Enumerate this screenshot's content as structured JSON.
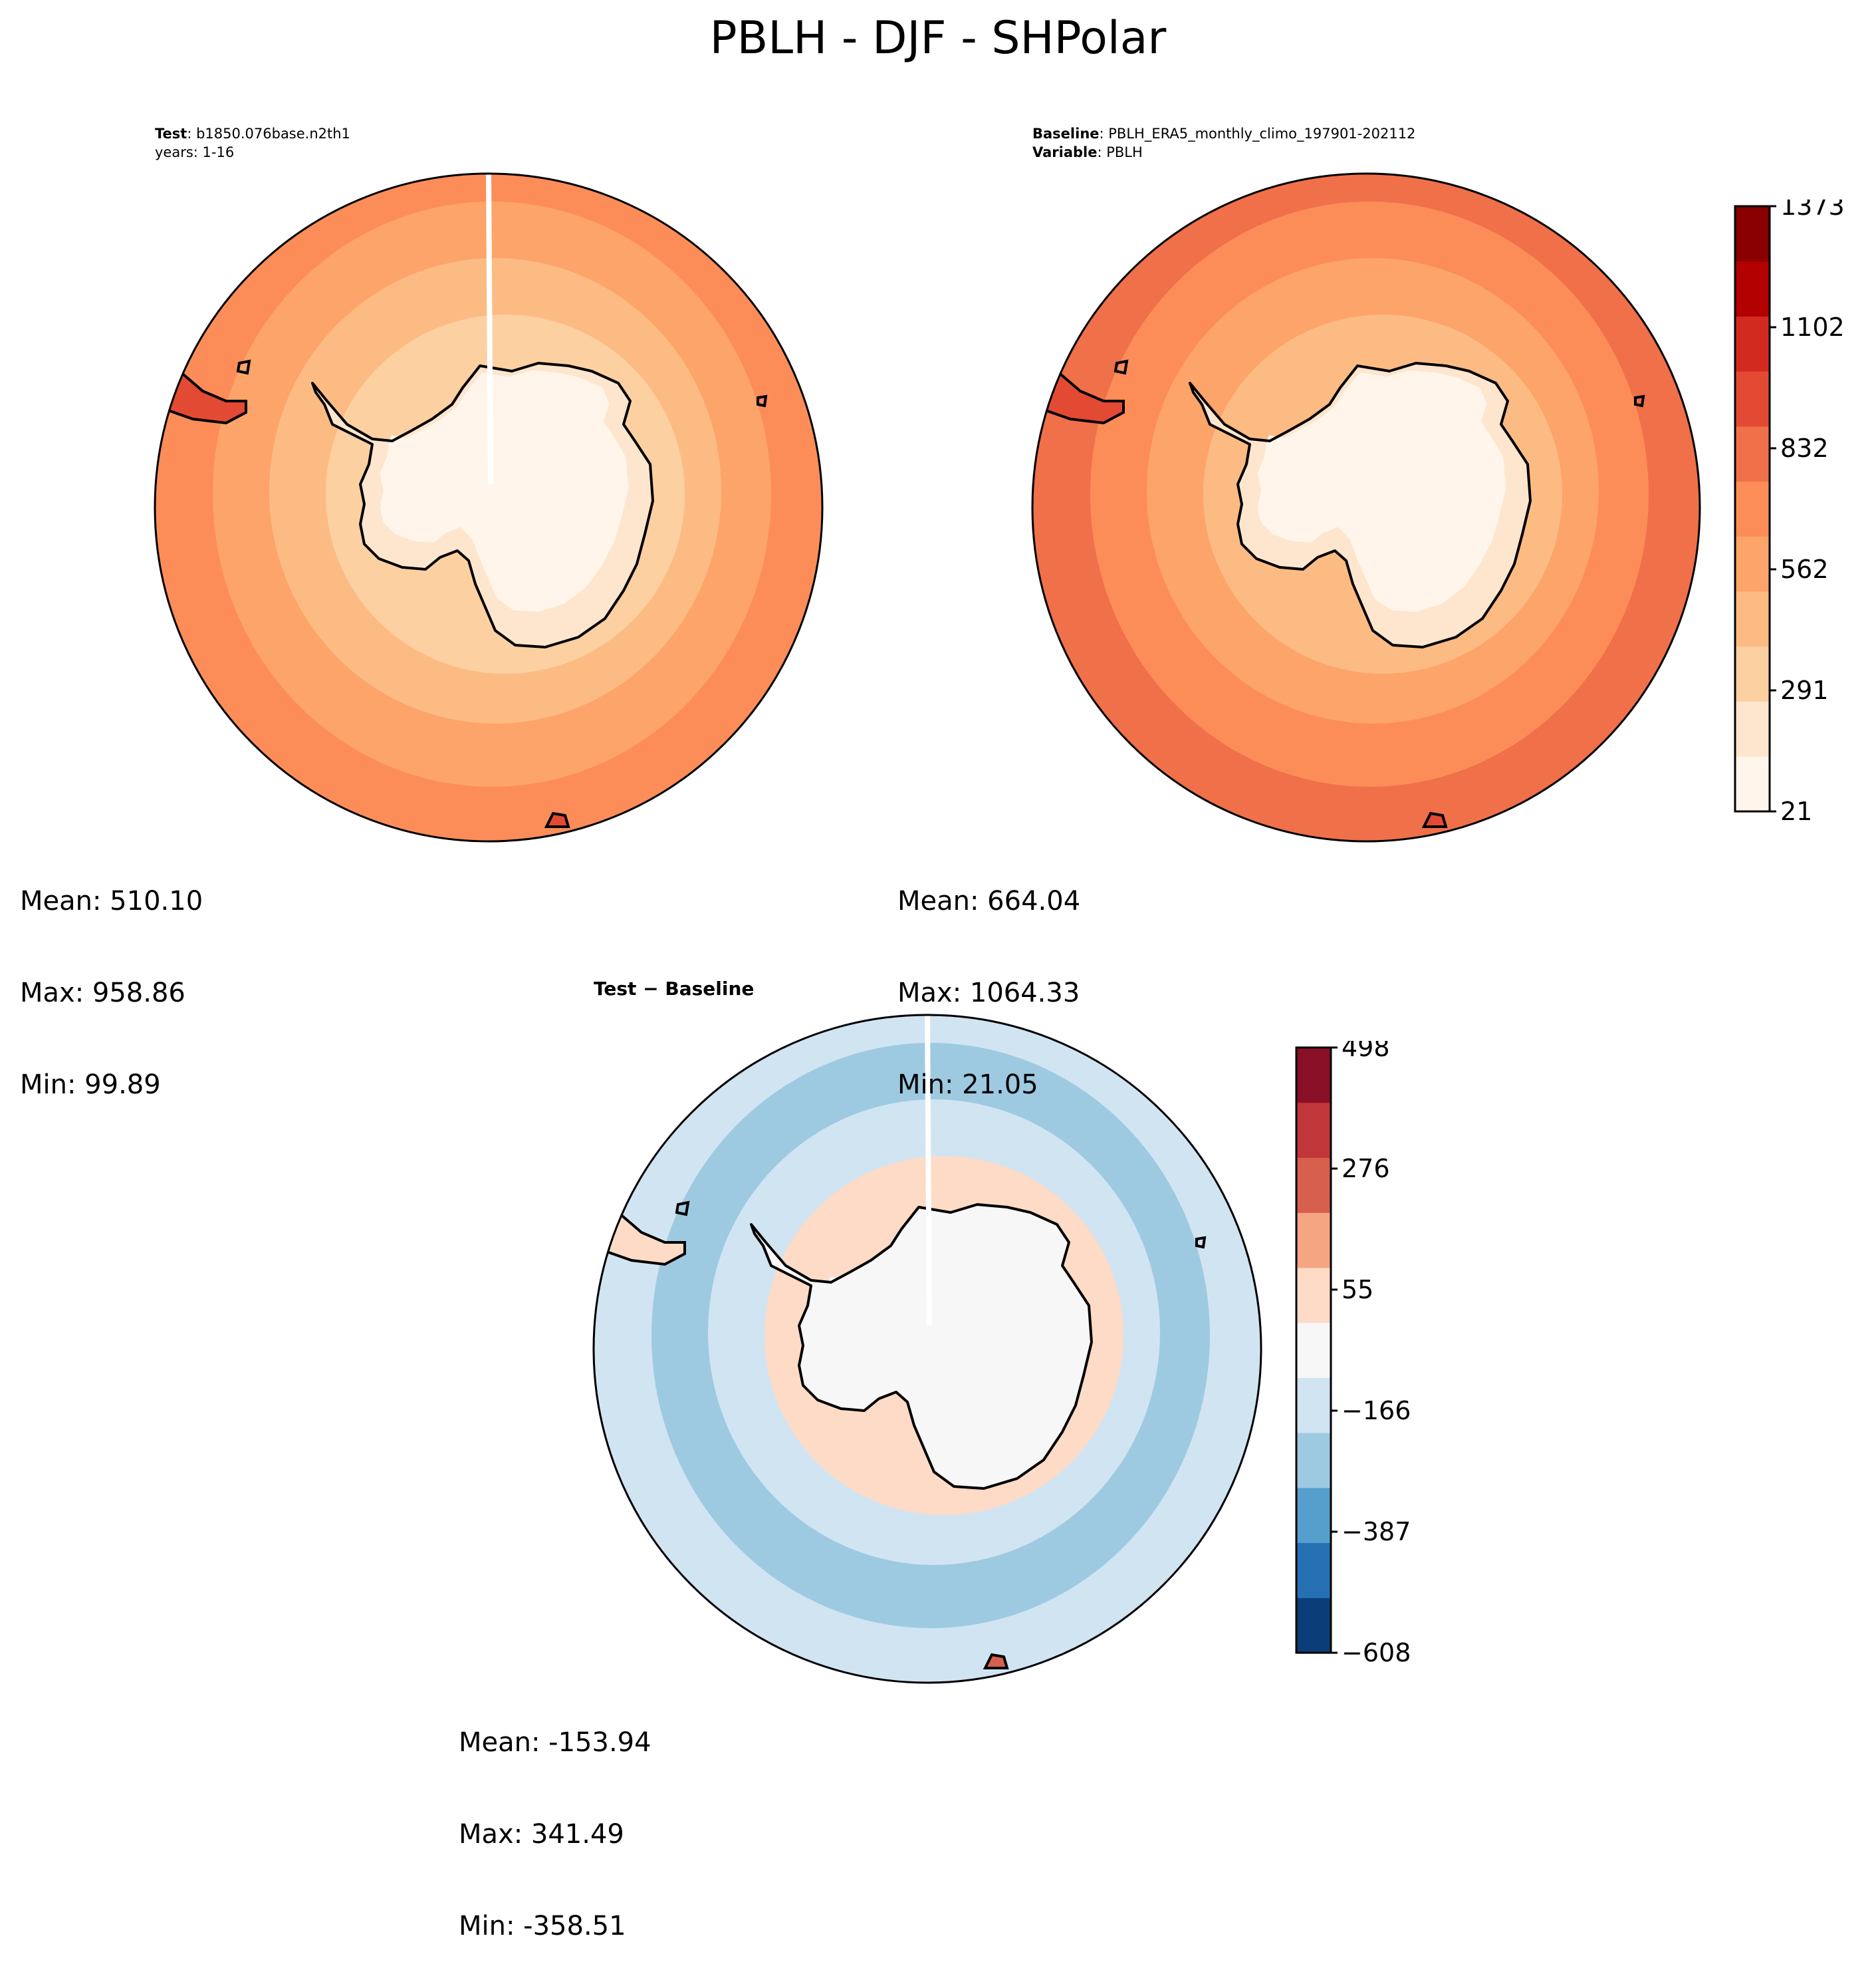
{
  "figure": {
    "title": "PBLH - DJF - SHPolar"
  },
  "panels": {
    "test": {
      "label_bold": "Test",
      "label_text": ": b1850.076base.n2th1",
      "subtitle": "years: 1-16",
      "stats": {
        "mean": "Mean: 510.10",
        "max": "Max: 958.86",
        "min": "Min: 99.89"
      }
    },
    "baseline": {
      "label_bold": "Baseline",
      "label_text": ": PBLH_ERA5_monthly_climo_197901-202112",
      "var_bold": "Variable",
      "var_text": ": PBLH",
      "stats": {
        "mean": "Mean: 664.04",
        "max": "Max: 1064.33",
        "min": "Min: 21.05"
      }
    },
    "diff": {
      "title": "Test − Baseline",
      "stats": {
        "mean": "Mean: -153.94",
        "max": "Max: 341.49",
        "min": "Min: -358.51"
      }
    }
  },
  "colorbars": {
    "main": {
      "colors": [
        "#fff5eb",
        "#fee6ce",
        "#fdd0a2",
        "#fdbb84",
        "#fda46a",
        "#fc8d59",
        "#f0704a",
        "#e34a33",
        "#d32a20",
        "#b30000",
        "#8a0000"
      ],
      "tick_labels": [
        "21",
        "291",
        "562",
        "832",
        "1102",
        "1373"
      ],
      "tick_fractions": [
        0,
        0.2,
        0.4,
        0.6,
        0.8,
        1.0
      ]
    },
    "diff": {
      "colors": [
        "#0b3e78",
        "#2671b4",
        "#569fcc",
        "#9ecae1",
        "#d1e4f2",
        "#f7f7f7",
        "#fddbc7",
        "#f4a582",
        "#d6604d",
        "#c13638",
        "#8a1027"
      ],
      "tick_labels": [
        "−608",
        "−387",
        "−166",
        "55",
        "276",
        "498"
      ],
      "tick_fractions": [
        0,
        0.2,
        0.4,
        0.6,
        0.8,
        1.0
      ]
    }
  },
  "map_colors": {
    "test": [
      "#fc8d59",
      "#fda46a",
      "#fdbb84",
      "#fdd0a2",
      "#fee6ce",
      "#fff5eb"
    ],
    "baseline": [
      "#f0704a",
      "#fc8d59",
      "#fda46a",
      "#fdbb84",
      "#fee6ce",
      "#fff5eb"
    ],
    "diff": [
      "#d1e4f2",
      "#9ecae1",
      "#d1e4f2",
      "#fddbc7",
      "#f7f7f7",
      "#f7f7f7"
    ]
  }
}
